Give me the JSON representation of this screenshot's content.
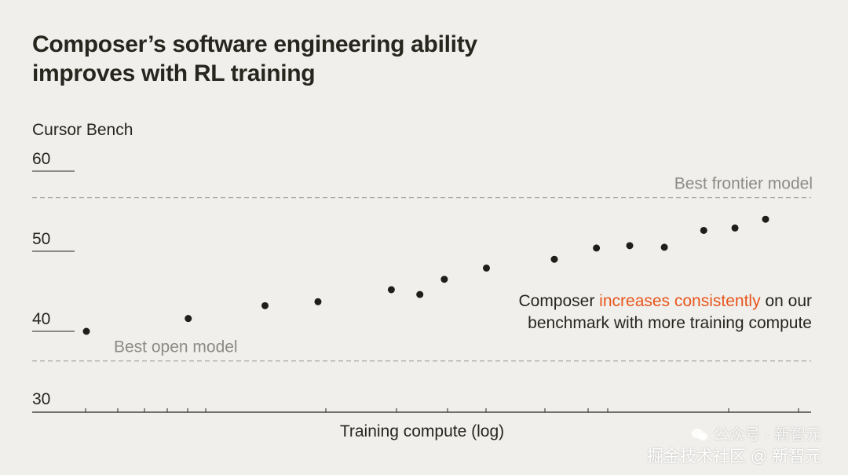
{
  "title": {
    "line1": "Composer’s software engineering ability",
    "line2": "improves with RL training"
  },
  "chart_data": {
    "type": "scatter",
    "ylabel": "Cursor Bench",
    "xlabel": "Training compute (log)",
    "ylim": [
      30,
      60
    ],
    "y_ticks": [
      "30",
      "40",
      "50",
      "60"
    ],
    "x_scale": "log",
    "grid": false,
    "reference_lines": [
      {
        "label": "Best frontier model",
        "y": 56.7
      },
      {
        "label": "Best open model",
        "y": 36.3
      }
    ],
    "points": [
      {
        "x": 1,
        "y": 40.0
      },
      {
        "x": 2,
        "y": 41.6
      },
      {
        "x": 3,
        "y": 43.2
      },
      {
        "x": 4,
        "y": 43.7
      },
      {
        "x": 5,
        "y": 45.2
      },
      {
        "x": 6,
        "y": 44.6
      },
      {
        "x": 7,
        "y": 46.5
      },
      {
        "x": 8,
        "y": 47.9
      },
      {
        "x": 9,
        "y": 49.0
      },
      {
        "x": 10,
        "y": 50.4
      },
      {
        "x": 11,
        "y": 50.7
      },
      {
        "x": 12,
        "y": 50.5
      },
      {
        "x": 13,
        "y": 52.6
      },
      {
        "x": 14,
        "y": 52.9
      },
      {
        "x": 15,
        "y": 54.0
      }
    ],
    "annotation": {
      "pre": "Composer ",
      "highlight": "increases consistently",
      "post": " on our",
      "line2": "benchmark with more training compute",
      "highlight_color": "#E8561C"
    }
  },
  "colors": {
    "background": "#F0EFEB",
    "text": "#26251E",
    "reference": "#8C8B85",
    "accent": "#E8561C"
  },
  "watermark": {
    "line1": "公众号 · 新智元",
    "line2": "掘金技术社区 @ 新智元",
    "icon": "wechat-icon"
  }
}
